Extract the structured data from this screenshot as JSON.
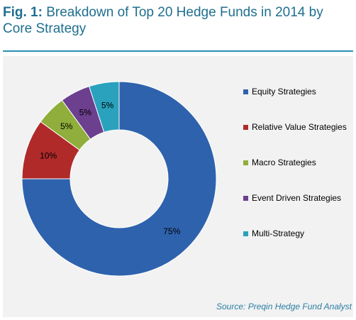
{
  "header": {
    "fig_label": "Fig. 1:",
    "title": "Breakdown of Top 20 Hedge Funds in 2014 by Core Strategy"
  },
  "source": "Source: Preqin Hedge Fund Analyst",
  "chart_data": {
    "type": "pie",
    "donut": true,
    "categories": [
      "Equity Strategies",
      "Relative Value Strategies",
      "Macro Strategies",
      "Event Driven Strategies",
      "Multi-Strategy"
    ],
    "values": [
      75,
      10,
      5,
      5,
      5
    ],
    "data_labels": [
      "75%",
      "10%",
      "5%",
      "5%",
      "5%"
    ],
    "colors": [
      "#2e62ad",
      "#b02a2a",
      "#8fae3b",
      "#6c3f8f",
      "#2aa2bd"
    ],
    "legend_placement": "right"
  }
}
